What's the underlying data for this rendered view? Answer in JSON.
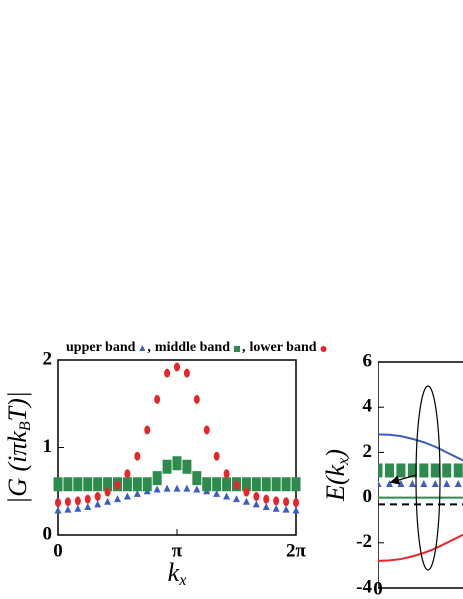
{
  "chart_data": [
    {
      "type": "scatter",
      "ylabel": [
        "|G (iπk",
        "B",
        "T)|"
      ],
      "xlabel": [
        "k",
        "x"
      ],
      "legend_separator": ",",
      "xlim": [
        0,
        6.2832
      ],
      "ylim": [
        0,
        2
      ],
      "xticks": [
        0,
        {
          "value": 3.1416,
          "label": "π"
        },
        {
          "value": 6.2832,
          "label": "2π"
        }
      ],
      "yticks": [
        0,
        1,
        2
      ],
      "x": [
        0,
        0.2618,
        0.5236,
        0.7854,
        1.0472,
        1.309,
        1.5708,
        1.8326,
        2.0944,
        2.3562,
        2.618,
        2.8798,
        3.1416,
        3.4034,
        3.6652,
        3.927,
        4.1888,
        4.4506,
        4.7124,
        4.9742,
        5.236,
        5.4978,
        5.7596,
        6.0214,
        6.2832
      ],
      "series": [
        {
          "name": "upper band",
          "color": "#3b5fc0",
          "marker": "triangle",
          "values": [
            0.28,
            0.29,
            0.3,
            0.32,
            0.35,
            0.38,
            0.41,
            0.44,
            0.47,
            0.5,
            0.52,
            0.53,
            0.53,
            0.53,
            0.52,
            0.5,
            0.47,
            0.44,
            0.41,
            0.38,
            0.35,
            0.32,
            0.3,
            0.29,
            0.28
          ]
        },
        {
          "name": "middle band",
          "color": "#2e8b4e",
          "marker": "square",
          "values": [
            0.58,
            0.58,
            0.58,
            0.58,
            0.58,
            0.58,
            0.58,
            0.58,
            0.58,
            0.58,
            0.65,
            0.78,
            0.82,
            0.78,
            0.65,
            0.58,
            0.58,
            0.58,
            0.58,
            0.58,
            0.58,
            0.58,
            0.58,
            0.58,
            0.58
          ]
        },
        {
          "name": "lower band",
          "color": "#e8262a",
          "marker": "circle",
          "values": [
            0.37,
            0.38,
            0.39,
            0.41,
            0.44,
            0.49,
            0.57,
            0.7,
            0.9,
            1.2,
            1.55,
            1.85,
            1.92,
            1.85,
            1.55,
            1.2,
            0.9,
            0.7,
            0.57,
            0.49,
            0.44,
            0.41,
            0.39,
            0.38,
            0.37
          ]
        }
      ]
    },
    {
      "type": "line",
      "ylabel": [
        "E(k",
        "x",
        ")"
      ],
      "xlim": [
        0,
        6.2832
      ],
      "ylim": [
        -4,
        6
      ],
      "xticks": [
        0
      ],
      "yticks": [
        -4,
        -2,
        0,
        2,
        4,
        6
      ],
      "x": [
        0,
        0.3,
        0.6,
        0.9,
        1.2,
        1.5,
        1.8,
        2.1,
        2.4
      ],
      "series": [
        {
          "color": "#3b5fc0",
          "style": "solid",
          "values": [
            2.8,
            2.78,
            2.72,
            2.6,
            2.45,
            2.25,
            2.0,
            1.75,
            1.5
          ]
        },
        {
          "color": "#e8262a",
          "style": "solid",
          "values": [
            -2.8,
            -2.78,
            -2.72,
            -2.6,
            -2.45,
            -2.25,
            -2.0,
            -1.75,
            -1.5
          ]
        },
        {
          "color": "#2e8b4e",
          "style": "solid",
          "values": [
            0,
            0,
            0,
            0,
            0,
            0,
            0,
            0,
            0
          ]
        },
        {
          "color": "#000000",
          "style": "dashed",
          "values": [
            -0.3,
            -0.3,
            -0.3,
            -0.3,
            -0.3,
            -0.3,
            -0.3,
            -0.3,
            -0.3
          ]
        },
        {
          "color": "#2e8b4e",
          "style": "square",
          "values": [
            1.2,
            1.2,
            1.2,
            1.2,
            1.2,
            1.2,
            1.2,
            1.2,
            1.2
          ]
        },
        {
          "color": "#3b5fc0",
          "style": "triangle",
          "values": [
            0.6,
            0.6,
            0.6,
            0.6,
            0.6,
            0.6,
            0.6,
            0.6,
            0.6
          ]
        }
      ]
    }
  ]
}
